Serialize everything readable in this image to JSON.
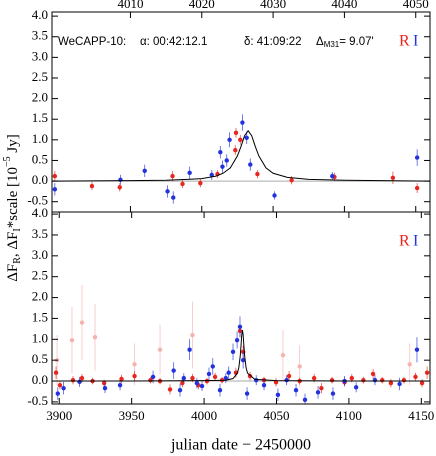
{
  "chart_data": [
    {
      "type": "scatter",
      "ylabel": [
        "ΔF",
        "R",
        ", ΔF",
        "I",
        "*scale [10",
        "−5",
        " Jy]"
      ],
      "annotations": [
        "WeCAPP-10:",
        "α: 00:42:12.1",
        "δ: 41:09:22",
        [
          "Δ",
          "M31",
          "= 9.07'"
        ]
      ],
      "xlim": [
        3999,
        4052
      ],
      "ylim": [
        -0.75,
        4.1
      ],
      "xticks": [
        4010,
        4020,
        4030,
        4040,
        4050
      ],
      "xtick_side": "top",
      "yticks": [
        -0.5,
        {
          "value": 0,
          "label": "0.0"
        },
        0.5,
        {
          "value": 1,
          "label": "1.0"
        },
        1.5,
        {
          "value": 2,
          "label": "2.0"
        },
        2.5,
        {
          "value": 3,
          "label": "3.0"
        },
        3.5,
        {
          "value": 4,
          "label": "4.0"
        }
      ],
      "reference_line": 0,
      "series": [
        {
          "name": "R",
          "color": "#e8261e",
          "x": [
            3999.4,
            4004.6,
            4008.5,
            4015.9,
            4017.3,
            4019.8,
            4022.2,
            4024.7,
            4024.8,
            4025.4,
            4027.8,
            4032.6,
            4038.6,
            4046.8,
            4050.2
          ],
          "values": [
            0.12,
            -0.12,
            -0.15,
            0.12,
            -0.07,
            -0.05,
            0.17,
            0.75,
            1.17,
            1.0,
            0.17,
            0.02,
            0.1,
            0.08,
            -0.17
          ],
          "errors": [
            0.12,
            0.1,
            0.1,
            0.12,
            0.1,
            0.1,
            0.1,
            0.12,
            0.12,
            0.12,
            0.1,
            0.1,
            0.1,
            0.15,
            0.12
          ]
        },
        {
          "name": "I",
          "color": "#2233dd",
          "x": [
            3999.4,
            4008.6,
            4012,
            4015.2,
            4016,
            4018.3,
            4021.4,
            4022.6,
            4022.9,
            4023.5,
            4023.9,
            4025.7,
            4026.3,
            4026.8,
            4030.2,
            4038.3,
            4050.2
          ],
          "values": [
            -0.2,
            0.03,
            0.25,
            -0.25,
            -0.4,
            0.2,
            0.15,
            0.7,
            0.35,
            0.5,
            1.0,
            1.42,
            1.05,
            0.4,
            -0.35,
            0.12,
            0.57
          ],
          "errors": [
            0.15,
            0.12,
            0.15,
            0.15,
            0.15,
            0.15,
            0.12,
            0.15,
            0.15,
            0.15,
            0.18,
            0.2,
            0.15,
            0.15,
            0.1,
            0.1,
            0.2
          ]
        },
        {
          "style": "line",
          "color": "#000000",
          "x": [
            3999,
            4010,
            4015,
            4018,
            4020,
            4022,
            4023,
            4024,
            4025,
            4025.5,
            4026,
            4026.5,
            4027,
            4027.5,
            4028,
            4029,
            4030,
            4032,
            4035,
            4040,
            4052
          ],
          "values": [
            0.0,
            0.01,
            0.02,
            0.04,
            0.06,
            0.12,
            0.19,
            0.32,
            0.61,
            0.84,
            1.1,
            1.22,
            1.1,
            0.84,
            0.61,
            0.32,
            0.19,
            0.09,
            0.04,
            0.02,
            0.0
          ]
        }
      ]
    },
    {
      "type": "scatter",
      "xlabel": "julian date − 2450000",
      "xlim": [
        3895,
        4156
      ],
      "ylim": [
        -0.55,
        4.05
      ],
      "xticks": [
        3900,
        3950,
        4000,
        4050,
        4100,
        4150
      ],
      "xtick_side": "bottom",
      "yticks": [
        -0.5,
        {
          "value": 0,
          "label": "0.0"
        },
        0.5,
        {
          "value": 1,
          "label": "1.0"
        },
        1.5,
        {
          "value": 2,
          "label": "2.0"
        },
        2.5,
        {
          "value": 3,
          "label": "3.0"
        },
        3.5,
        {
          "value": 4,
          "label": "4.0"
        }
      ],
      "reference_line": 0,
      "series": [
        {
          "color": "#f5b3b0",
          "x": [
            3898.5,
            3908.8,
            3915.7,
            3924.7,
            3952,
            3969.6,
            3992,
            4054.5,
            4066,
            4142
          ],
          "values": [
            0.5,
            0.98,
            1.4,
            1.05,
            0.4,
            0.75,
            1.1,
            0.62,
            0.35,
            0.4
          ],
          "errors": [
            0.6,
            0.8,
            0.9,
            0.8,
            0.5,
            0.6,
            0.8,
            0.6,
            0.5,
            0.5
          ]
        },
        {
          "name": "R",
          "color": "#e8261e",
          "x": [
            3897.8,
            3900.5,
            3909.5,
            3915.7,
            3923,
            3931,
            3943,
            3952,
            3963,
            3969.6,
            3976.5,
            3985,
            3992,
            3996,
            4002,
            4007.6,
            4012.4,
            4022,
            4024.8,
            4027,
            4031.7,
            4041.4,
            4049.7,
            4058.7,
            4066,
            4076,
            4081,
            4088.4,
            4097,
            4102,
            4110,
            4116.7,
            4123,
            4129,
            4138,
            4146,
            4150.5,
            4154
          ],
          "values": [
            0.2,
            -0.1,
            0.02,
            0.07,
            0,
            -0.05,
            0.05,
            0.12,
            0.02,
            0,
            -0.2,
            -0.05,
            0.07,
            -0.1,
            0,
            0.1,
            0.02,
            0.2,
            1.2,
            0.7,
            0.12,
            0.02,
            -0.03,
            0.12,
            0,
            0.07,
            -0.17,
            0.02,
            -0.03,
            0.07,
            0.02,
            0.17,
            0.02,
            -0.05,
            0.02,
            0.1,
            -0.05,
            0.2
          ],
          "errors": [
            0.15,
            0.1,
            0.1,
            0.1,
            0.08,
            0.08,
            0.1,
            0.12,
            0.08,
            0.08,
            0.12,
            0.1,
            0.1,
            0.1,
            0.08,
            0.1,
            0.08,
            0.12,
            0.15,
            0.15,
            0.1,
            0.08,
            0.1,
            0.12,
            0.08,
            0.1,
            0.12,
            0.08,
            0.1,
            0.1,
            0.08,
            0.12,
            0.08,
            0.1,
            0.08,
            0.1,
            0.1,
            0.15
          ]
        },
        {
          "name": "I",
          "color": "#2233dd",
          "x": [
            3899,
            3903,
            3914,
            3931.6,
            3942,
            3964.8,
            3979,
            3983.4,
            3986,
            3990,
            3995,
            3998.6,
            4003.4,
            4006,
            4011,
            4015,
            4017,
            4020,
            4022.8,
            4024.8,
            4027,
            4029.7,
            4036,
            4041.4,
            4051,
            4057,
            4063.5,
            4069.7,
            4078.7,
            4089,
            4097,
            4105,
            4118,
            4135,
            4147
          ],
          "values": [
            -0.3,
            -0.17,
            -0.02,
            -0.17,
            -0.1,
            0.1,
            0.25,
            -0.22,
            0.07,
            0.75,
            -0.05,
            -0.12,
            0.17,
            0.35,
            -0.22,
            0.07,
            0.2,
            0.7,
            0.98,
            1.3,
            0.5,
            -0.3,
            0.02,
            -0.1,
            -0.33,
            0.02,
            -0.22,
            -0.45,
            -0.27,
            -0.3,
            0,
            -0.15,
            0.02,
            -0.07,
            0.75
          ],
          "errors": [
            0.15,
            0.15,
            0.12,
            0.12,
            0.12,
            0.15,
            0.2,
            0.15,
            0.12,
            0.25,
            0.12,
            0.12,
            0.15,
            0.2,
            0.15,
            0.12,
            0.15,
            0.2,
            0.2,
            0.25,
            0.2,
            0.15,
            0.12,
            0.12,
            0.15,
            0.12,
            0.15,
            0.15,
            0.15,
            0.15,
            0.12,
            0.12,
            0.12,
            0.15,
            0.3
          ]
        },
        {
          "style": "line",
          "color": "#000000",
          "x": [
            3895,
            3950,
            4000,
            4015,
            4020,
            4023,
            4024,
            4025,
            4025.5,
            4026,
            4026.5,
            4027,
            4027.5,
            4028,
            4029,
            4030,
            4035,
            4050,
            4100,
            4156
          ],
          "values": [
            0.0,
            0.0,
            0.01,
            0.02,
            0.06,
            0.19,
            0.32,
            0.61,
            0.84,
            1.1,
            1.22,
            1.1,
            0.84,
            0.61,
            0.32,
            0.19,
            0.04,
            0.01,
            0.0,
            0.0
          ]
        }
      ]
    }
  ]
}
